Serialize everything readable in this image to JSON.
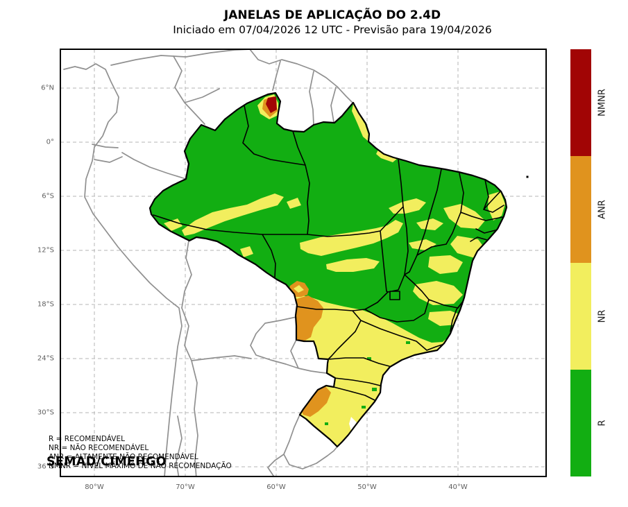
{
  "header": {
    "title": "JANELAS DE APLICAÇÃO DO 2.4D",
    "subtitle": "Iniciado em 07/04/2026 12 UTC - Previsão para 19/04/2026"
  },
  "axes": {
    "latitude_ticks": [
      "6°N",
      "0°",
      "6°S",
      "12°S",
      "18°S",
      "24°S",
      "30°S",
      "36°S"
    ],
    "longitude_ticks": [
      "80°W",
      "70°W",
      "60°W",
      "50°W",
      "40°W"
    ]
  },
  "colorbar": {
    "segments": [
      {
        "code": "NMNR",
        "color": "#a10505"
      },
      {
        "code": "ANR",
        "color": "#e0931e"
      },
      {
        "code": "NR",
        "color": "#f2ee5e"
      },
      {
        "code": "R",
        "color": "#12ae12"
      }
    ]
  },
  "legend": {
    "lines": [
      "R = RECOMENDÁVEL",
      "NR = NÃO RECOMENDÁVEL",
      "ANR = ALTAMENTE NÃO RECOMENDÁVEL",
      "NMNR = NÍVEL MÁXIMO DE NÃO RECOMENDAÇÃO"
    ]
  },
  "watermark": "SEMAD/CIMEHGO",
  "map_colors": {
    "recommended": "#12ae12",
    "not_recommended": "#f2ee5e",
    "highly_not_recommended": "#e0931e",
    "max_not_recommended": "#a10505",
    "country_border": "#909090",
    "gridline": "#b4b4b4",
    "state_border": "#000000"
  }
}
